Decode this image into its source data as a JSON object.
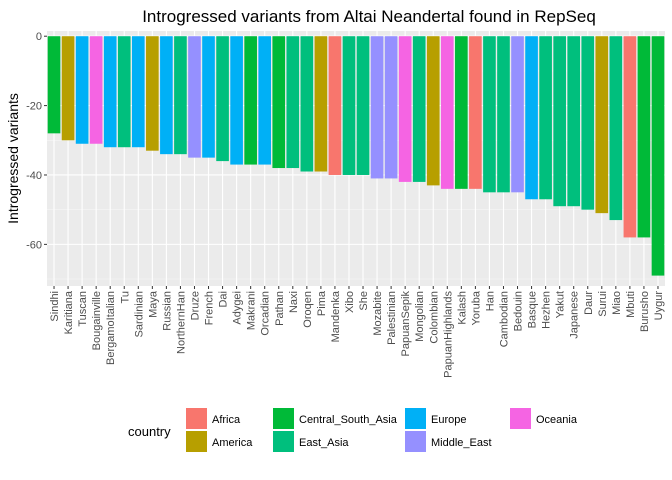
{
  "chart_data": {
    "type": "bar",
    "title": "Introgressed variants from Altai Neandertal found in RepSeq",
    "xlabel": "",
    "ylabel": "Introgressed variants",
    "ylim": [
      -72,
      1.5
    ],
    "yticks": [
      0,
      -20,
      -40,
      -60
    ],
    "grid": true,
    "legend_position": "bottom",
    "legend_title": "country",
    "groups": [
      {
        "name": "Africa",
        "color": "#F8766D"
      },
      {
        "name": "America",
        "color": "#B79F00"
      },
      {
        "name": "Central_South_Asia",
        "color": "#00BA38"
      },
      {
        "name": "East_Asia",
        "color": "#00BF7D"
      },
      {
        "name": "Europe",
        "color": "#00B0F6"
      },
      {
        "name": "Middle_East",
        "color": "#9590FF"
      },
      {
        "name": "Oceania",
        "color": "#F564E3"
      }
    ],
    "bars": [
      {
        "category": "Sindhi",
        "value": -28,
        "group": "Central_South_Asia"
      },
      {
        "category": "Karitiana",
        "value": -30,
        "group": "America"
      },
      {
        "category": "Tuscan",
        "value": -31,
        "group": "Europe"
      },
      {
        "category": "Bougainville",
        "value": -31,
        "group": "Oceania"
      },
      {
        "category": "BergamoItalian",
        "value": -32,
        "group": "Europe"
      },
      {
        "category": "Tu",
        "value": -32,
        "group": "East_Asia"
      },
      {
        "category": "Sardinian",
        "value": -32,
        "group": "Europe"
      },
      {
        "category": "Maya",
        "value": -33,
        "group": "America"
      },
      {
        "category": "Russian",
        "value": -34,
        "group": "Europe"
      },
      {
        "category": "NorthernHan",
        "value": -34,
        "group": "East_Asia"
      },
      {
        "category": "Druze",
        "value": -35,
        "group": "Middle_East"
      },
      {
        "category": "French",
        "value": -35,
        "group": "Europe"
      },
      {
        "category": "Dai",
        "value": -36,
        "group": "East_Asia"
      },
      {
        "category": "Adygei",
        "value": -37,
        "group": "Europe"
      },
      {
        "category": "Makrani",
        "value": -37,
        "group": "Central_South_Asia"
      },
      {
        "category": "Orcadian",
        "value": -37,
        "group": "Europe"
      },
      {
        "category": "Pathan",
        "value": -38,
        "group": "Central_South_Asia"
      },
      {
        "category": "Naxi",
        "value": -38,
        "group": "East_Asia"
      },
      {
        "category": "Oroqen",
        "value": -39,
        "group": "East_Asia"
      },
      {
        "category": "Pima",
        "value": -39,
        "group": "America"
      },
      {
        "category": "Mandenka",
        "value": -40,
        "group": "Africa"
      },
      {
        "category": "Xibo",
        "value": -40,
        "group": "East_Asia"
      },
      {
        "category": "She",
        "value": -40,
        "group": "East_Asia"
      },
      {
        "category": "Mozabite",
        "value": -41,
        "group": "Middle_East"
      },
      {
        "category": "Palestinian",
        "value": -41,
        "group": "Middle_East"
      },
      {
        "category": "PapuanSepik",
        "value": -42,
        "group": "Oceania"
      },
      {
        "category": "Mongolian",
        "value": -42,
        "group": "East_Asia"
      },
      {
        "category": "Colombian",
        "value": -43,
        "group": "America"
      },
      {
        "category": "PapuanHighlands",
        "value": -44,
        "group": "Oceania"
      },
      {
        "category": "Kalash",
        "value": -44,
        "group": "Central_South_Asia"
      },
      {
        "category": "Yoruba",
        "value": -44,
        "group": "Africa"
      },
      {
        "category": "Han",
        "value": -45,
        "group": "East_Asia"
      },
      {
        "category": "Cambodian",
        "value": -45,
        "group": "East_Asia"
      },
      {
        "category": "Bedouin",
        "value": -45,
        "group": "Middle_East"
      },
      {
        "category": "Basque",
        "value": -47,
        "group": "Europe"
      },
      {
        "category": "Hezhen",
        "value": -47,
        "group": "East_Asia"
      },
      {
        "category": "Yakut",
        "value": -49,
        "group": "East_Asia"
      },
      {
        "category": "Japanese",
        "value": -49,
        "group": "East_Asia"
      },
      {
        "category": "Daur",
        "value": -50,
        "group": "East_Asia"
      },
      {
        "category": "Surui",
        "value": -51,
        "group": "America"
      },
      {
        "category": "Miao",
        "value": -53,
        "group": "East_Asia"
      },
      {
        "category": "Mbuti",
        "value": -58,
        "group": "Africa"
      },
      {
        "category": "Burusho",
        "value": -58,
        "group": "Central_South_Asia"
      },
      {
        "category": "Uygur",
        "value": -69,
        "group": "Central_South_Asia"
      }
    ]
  }
}
